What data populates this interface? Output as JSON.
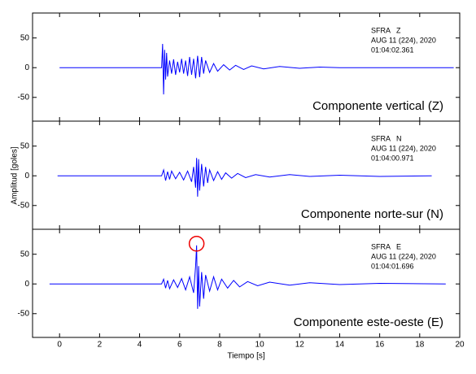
{
  "chart_data": [
    {
      "type": "line",
      "title": "Componente vertical (Z)",
      "annotations": [
        "SFRA   Z",
        "AUG 11 (224), 2020",
        "01:04:02.361"
      ],
      "xlim": [
        -1.35,
        20
      ],
      "xticks": [
        0,
        2,
        4,
        6,
        8,
        10,
        12,
        14,
        16,
        18,
        20
      ],
      "ylim": [
        -90,
        92
      ],
      "yticks": [
        -50,
        0,
        50
      ],
      "series": [
        {
          "name": "Z",
          "color": "#0000ff",
          "x": [
            0,
            5.1,
            5.15,
            5.2,
            5.25,
            5.3,
            5.35,
            5.4,
            5.5,
            5.6,
            5.7,
            5.8,
            5.9,
            6.0,
            6.1,
            6.2,
            6.3,
            6.4,
            6.5,
            6.6,
            6.7,
            6.8,
            6.9,
            7.0,
            7.1,
            7.2,
            7.3,
            7.5,
            7.7,
            7.9,
            8.2,
            8.5,
            8.8,
            9.2,
            9.6,
            10.2,
            11,
            12,
            13,
            14,
            19.7
          ],
          "values": [
            0,
            0,
            40,
            -45,
            30,
            -20,
            25,
            -15,
            12,
            -10,
            14,
            -12,
            10,
            -8,
            15,
            -10,
            12,
            -14,
            18,
            -12,
            15,
            -18,
            20,
            -16,
            18,
            -10,
            12,
            -8,
            7,
            -6,
            5,
            -4,
            4,
            -3,
            3,
            -2,
            2,
            -1,
            1,
            0,
            0
          ]
        }
      ]
    },
    {
      "type": "line",
      "title": "Componente norte-sur (N)",
      "ylabel": "Amplitud [goles]",
      "annotations": [
        "SFRA   N",
        "AUG 11 (224), 2020",
        "01:04:00.971"
      ],
      "xlim": [
        -1.35,
        20
      ],
      "xticks": [
        0,
        2,
        4,
        6,
        8,
        10,
        12,
        14,
        16,
        18,
        20
      ],
      "ylim": [
        -90,
        92
      ],
      "yticks": [
        -50,
        0,
        50
      ],
      "series": [
        {
          "name": "N",
          "color": "#0000ff",
          "x": [
            -0.1,
            5.1,
            5.2,
            5.3,
            5.4,
            5.5,
            5.6,
            5.8,
            6.0,
            6.2,
            6.4,
            6.6,
            6.7,
            6.8,
            6.85,
            6.9,
            6.95,
            7.0,
            7.1,
            7.2,
            7.3,
            7.4,
            7.5,
            7.7,
            7.9,
            8.1,
            8.3,
            8.6,
            8.9,
            9.3,
            9.8,
            10.5,
            11.5,
            12.5,
            14,
            16,
            18.6
          ],
          "values": [
            0,
            0,
            10,
            -8,
            7,
            -6,
            8,
            -5,
            6,
            -7,
            8,
            -10,
            15,
            -20,
            30,
            -35,
            28,
            -25,
            20,
            -18,
            15,
            -12,
            10,
            -8,
            7,
            -6,
            5,
            -4,
            4,
            -3,
            2,
            -2,
            2,
            -1,
            1,
            -1,
            0
          ]
        }
      ]
    },
    {
      "type": "line",
      "title": "Componente este-oeste (E)",
      "xlabel": "Tiempo [s]",
      "annotations": [
        "SFRA   E",
        "AUG 11 (224), 2020",
        "01:04:01.696"
      ],
      "xlim": [
        -1.35,
        20
      ],
      "xticks": [
        0,
        2,
        4,
        6,
        8,
        10,
        12,
        14,
        16,
        18,
        20
      ],
      "ylim": [
        -90,
        92
      ],
      "yticks": [
        -50,
        0,
        50
      ],
      "series": [
        {
          "name": "E",
          "color": "#0000ff",
          "x": [
            -0.5,
            5.1,
            5.2,
            5.3,
            5.4,
            5.5,
            5.7,
            5.9,
            6.1,
            6.3,
            6.5,
            6.7,
            6.8,
            6.85,
            6.9,
            6.95,
            7.0,
            7.1,
            7.2,
            7.3,
            7.5,
            7.7,
            7.9,
            8.1,
            8.4,
            8.7,
            9.0,
            9.4,
            9.9,
            10.5,
            11.5,
            12.5,
            14,
            16,
            19.3
          ],
          "values": [
            0,
            0,
            8,
            -7,
            6,
            -8,
            7,
            -6,
            9,
            -10,
            12,
            -15,
            30,
            65,
            -42,
            30,
            -38,
            20,
            -25,
            15,
            -12,
            12,
            -10,
            8,
            -7,
            6,
            -5,
            4,
            -3,
            3,
            -2,
            2,
            -1,
            1,
            0
          ]
        }
      ]
    }
  ]
}
